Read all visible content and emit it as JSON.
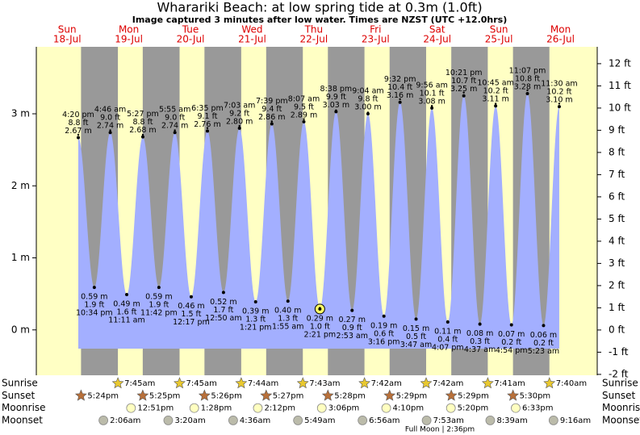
{
  "chart_data": {
    "type": "tide",
    "title": "Wharariki Beach: at low  spring tide at 0.3m (1.0ft)",
    "subtitle": "Image captured 3 minutes after low water. Times are NZST (UTC +12.0hrs)",
    "categories": [
      "Sun",
      "Mon",
      "Tue",
      "Wed",
      "Thu",
      "Fri",
      "Sat",
      "Sun",
      "Mon"
    ],
    "dates": [
      "18-Jul",
      "19-Jul",
      "20-Jul",
      "21-Jul",
      "22-Jul",
      "23-Jul",
      "24-Jul",
      "25-Jul",
      "26-Jul"
    ],
    "x": [
      "4:20 pm",
      "10:34 pm",
      "4:46 am",
      "11:11 am",
      "5:27 pm",
      "11:42 pm",
      "5:55 am",
      "12:17 pm",
      "6:35 pm",
      "12:50 am",
      "7:03 am",
      "1:21 pm",
      "7:39 pm",
      "1:55 am",
      "8:07 am",
      "2:21 pm",
      "8:38 pm",
      "2:53 am",
      "9:04 am",
      "3:16 pm",
      "9:32 pm",
      "3:47 am",
      "9:56 am",
      "4:07 pm",
      "10:21 pm",
      "4:37 am",
      "10:45 am",
      "4:54 pm",
      "11:07 pm",
      "5:23 am",
      "11:30 am"
    ],
    "series": [
      {
        "color": "#000000",
        "values": [
          2.67,
          0.59,
          2.74,
          0.49,
          2.68,
          0.59,
          2.74,
          0.46,
          2.76,
          0.52,
          2.8,
          0.39,
          2.86,
          0.4,
          2.89,
          0.29,
          3.03,
          0.27,
          3.0,
          0.19,
          3.16,
          0.15,
          3.08,
          0.11,
          3.25,
          0.08,
          3.11,
          0.07,
          3.28,
          0.06,
          3.1
        ],
        "value_labels": [
          "2.67 m",
          "0.59 m",
          "2.74 m",
          "0.49 m",
          "2.68 m",
          "0.59 m",
          "2.74 m",
          "0.46 m",
          "2.76 m",
          "0.52 m",
          "2.80 m",
          "0.39 m",
          "2.86 m",
          "0.40 m",
          "2.89 m",
          "0.29 m",
          "3.03 m",
          "0.27 m",
          "3.00 m",
          "0.19 m",
          "3.16 m",
          "0.15 m",
          "3.08 m",
          "0.11 m",
          "3.25 m",
          "0.08 m",
          "3.11 m",
          "0.07 m",
          "3.28 m",
          "0.06 m",
          "3.10 m"
        ]
      },
      {
        "axis": "y2",
        "color": "#000000",
        "values": [
          8.8,
          1.9,
          9.0,
          1.6,
          8.8,
          1.9,
          9.0,
          1.5,
          9.1,
          1.7,
          9.2,
          1.3,
          9.4,
          1.3,
          9.5,
          1.0,
          9.9,
          0.9,
          9.8,
          0.6,
          10.4,
          0.5,
          10.1,
          0.4,
          10.7,
          0.3,
          10.2,
          0.2,
          10.8,
          0.2,
          10.2
        ],
        "value_labels": [
          "8.8 ft",
          "1.9 ft",
          "9.0 ft",
          "1.6 ft",
          "8.8 ft",
          "1.9 ft",
          "9.0 ft",
          "1.5 ft",
          "9.1 ft",
          "1.7 ft",
          "9.2 ft",
          "1.3 ft",
          "9.4 ft",
          "1.3 ft",
          "9.5 ft",
          "1.0 ft",
          "9.9 ft",
          "0.9 ft",
          "9.8 ft",
          "0.6 ft",
          "10.4 ft",
          "0.5 ft",
          "10.1 ft",
          "0.4 ft",
          "10.7 ft",
          "0.3 ft",
          "10.2 ft",
          "0.2 ft",
          "10.8 ft",
          "0.2 ft",
          "10.2 ft"
        ]
      }
    ],
    "ylim": [
      -0.63,
      3.93
    ],
    "yticks": [
      {
        "value": 0,
        "label": "0 m"
      },
      {
        "value": 1,
        "label": "1 m"
      },
      {
        "value": 2,
        "label": "2 m"
      },
      {
        "value": 3,
        "label": "3 m"
      }
    ],
    "y2lim": [
      -2.04,
      12.76
    ],
    "y2ticks": [
      {
        "value": -2,
        "label": "-2 ft"
      },
      {
        "value": -1,
        "label": "-1 ft"
      },
      {
        "value": 0,
        "label": "0 ft"
      },
      {
        "value": 1,
        "label": "1 ft"
      },
      {
        "value": 2,
        "label": "2 ft"
      },
      {
        "value": 3,
        "label": "3 ft"
      },
      {
        "value": 4,
        "label": "4 ft"
      },
      {
        "value": 5,
        "label": "5 ft"
      },
      {
        "value": 6,
        "label": "6 ft"
      },
      {
        "value": 7,
        "label": "7 ft"
      },
      {
        "value": 8,
        "label": "8 ft"
      },
      {
        "value": 9,
        "label": "9 ft"
      },
      {
        "value": 10,
        "label": "10 ft"
      },
      {
        "value": 11,
        "label": "11 ft"
      },
      {
        "value": 12,
        "label": "12 ft"
      }
    ],
    "fill_color": "#a3afff",
    "day_color": "#ffffc4",
    "night_color": "#999999",
    "date_color": "#dd0000",
    "rows": [
      {
        "name": "Sunrise",
        "color": "#e8c830",
        "times": [
          null,
          "7:45am",
          "7:45am",
          "7:44am",
          "7:43am",
          "7:42am",
          "7:42am",
          "7:41am",
          "7:40am"
        ]
      },
      {
        "name": "Sunset",
        "color": "#b8703a",
        "times": [
          "5:24pm",
          "5:25pm",
          "5:26pm",
          "5:27pm",
          "5:28pm",
          "5:29pm",
          "5:29pm",
          "5:30pm",
          null
        ]
      },
      {
        "name": "Moonrise",
        "color": "#ffffc0",
        "times": [
          null,
          "12:51pm",
          "1:28pm",
          "2:12pm",
          "3:06pm",
          "4:10pm",
          "5:20pm",
          "6:33pm",
          null
        ]
      },
      {
        "name": "Moonset",
        "color": "#bbbbaa",
        "times": [
          null,
          "2:06am",
          "3:20am",
          "4:36am",
          "5:49am",
          "6:56am",
          "7:53am",
          "8:39am",
          "9:16am"
        ]
      }
    ],
    "note": "Full Moon | 2:36pm"
  }
}
